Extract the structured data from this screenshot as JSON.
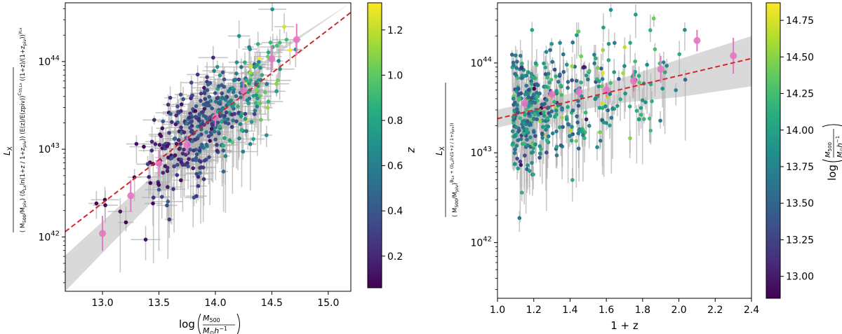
{
  "chart_data": [
    {
      "type": "scatter",
      "title": "",
      "xlabel": "log(M500 / M⊙ h⁻¹)",
      "ylabel": "L_X / [ (M500/Mpiv) (δ_Lx ln((1+z)/(1+z_piv))) (E(z)/E(z_piv))^(C_SS,Lx) ((1+z)/(1+z_piv))^(γ_Lx) ]",
      "xlim": [
        12.67,
        15.2
      ],
      "ylim_log10": [
        41.38,
        44.67
      ],
      "xticks": [
        "13.0",
        "13.5",
        "14.0",
        "14.5",
        "15.0"
      ],
      "yticks": [
        "10^42",
        "10^43",
        "10^44"
      ],
      "ytick_values_log10": [
        42,
        43,
        44
      ],
      "colorbar": {
        "label": "z",
        "range": [
          0.06,
          1.32
        ],
        "ticks": [
          "0.2",
          "0.4",
          "0.6",
          "0.8",
          "1.0",
          "1.2"
        ],
        "tick_values": [
          0.2,
          0.4,
          0.6,
          0.8,
          1.0,
          1.2
        ]
      },
      "fit_line": {
        "style": "red-dashed",
        "points": [
          [
            12.67,
            42.06
          ],
          [
            15.2,
            44.56
          ]
        ]
      },
      "confidence_band": {
        "x": [
          12.67,
          13.5,
          14.0,
          14.5,
          15.2
        ],
        "lower": [
          41.38,
          42.48,
          43.28,
          44.04,
          44.67
        ],
        "upper": [
          41.79,
          42.76,
          43.4,
          44.09,
          44.67
        ]
      },
      "binned_means": [
        {
          "x": 13.0,
          "y": 42.04,
          "err": 0.2
        },
        {
          "x": 13.25,
          "y": 42.47,
          "err": 0.18
        },
        {
          "x": 13.5,
          "y": 42.84,
          "err": 0.15
        },
        {
          "x": 13.75,
          "y": 43.05,
          "err": 0.1
        },
        {
          "x": 14.0,
          "y": 43.36,
          "err": 0.1
        },
        {
          "x": 14.25,
          "y": 43.67,
          "err": 0.12
        },
        {
          "x": 14.5,
          "y": 44.03,
          "err": 0.15
        },
        {
          "x": 14.72,
          "y": 44.25,
          "err": 0.18
        }
      ],
      "scatter_model": {
        "n_points": 420,
        "x_center": 13.95,
        "x_spread": 0.3,
        "slope": 0.99,
        "intercept_at_14": 43.38,
        "scatter_dex": 0.28,
        "color_variable": "z"
      }
    },
    {
      "type": "scatter",
      "title": "",
      "xlabel": "1 + z",
      "ylabel": "L_X / [ (M500/Mpiv)^(B_Lx + δ_Lx ln((1+z)/(1+z_piv))) ]",
      "xlim": [
        1.0,
        2.4
      ],
      "ylim_log10": [
        41.38,
        44.67
      ],
      "xticks": [
        "1.0",
        "1.2",
        "1.4",
        "1.6",
        "1.8",
        "2.0",
        "2.2",
        "2.4"
      ],
      "yticks": [
        "10^42",
        "10^43",
        "10^44"
      ],
      "ytick_values_log10": [
        42,
        43,
        44
      ],
      "colorbar": {
        "label": "log(M500 / M⊙ h⁻¹)",
        "range": [
          12.85,
          14.87
        ],
        "ticks": [
          "13.00",
          "13.25",
          "13.50",
          "13.75",
          "14.00",
          "14.25",
          "14.50",
          "14.75"
        ],
        "tick_values": [
          13.0,
          13.25,
          13.5,
          13.75,
          14.0,
          14.25,
          14.5,
          14.75
        ]
      },
      "fit_line": {
        "style": "red-dashed",
        "points": [
          [
            1.0,
            43.38
          ],
          [
            2.4,
            44.05
          ]
        ]
      },
      "confidence_band": {
        "x": [
          1.0,
          1.4,
          1.7,
          2.0,
          2.4
        ],
        "lower": [
          43.28,
          43.46,
          43.56,
          43.62,
          43.74
        ],
        "upper": [
          43.48,
          43.66,
          43.84,
          44.04,
          44.3
        ]
      },
      "binned_means": [
        {
          "x": 1.15,
          "y": 43.55,
          "err": 0.08
        },
        {
          "x": 1.3,
          "y": 43.65,
          "err": 0.06
        },
        {
          "x": 1.45,
          "y": 43.68,
          "err": 0.06
        },
        {
          "x": 1.6,
          "y": 43.7,
          "err": 0.08
        },
        {
          "x": 1.75,
          "y": 43.8,
          "err": 0.12
        },
        {
          "x": 1.9,
          "y": 43.93,
          "err": 0.15
        },
        {
          "x": 2.1,
          "y": 44.25,
          "err": 0.12
        },
        {
          "x": 2.3,
          "y": 44.08,
          "err": 0.2
        }
      ],
      "scatter_model": {
        "n_points": 420,
        "x_min": 1.08,
        "x_decay": 0.28,
        "x_max": 2.35,
        "slope": 0.48,
        "intercept_at_1": 43.38,
        "scatter_dex": 0.33,
        "color_variable": "log M500"
      }
    }
  ],
  "colors": {
    "fit_line": "#d62728",
    "binned_means": "#e377c2",
    "confidence_band": "#d9d9d9",
    "error_bars": "#b0b0b0"
  }
}
